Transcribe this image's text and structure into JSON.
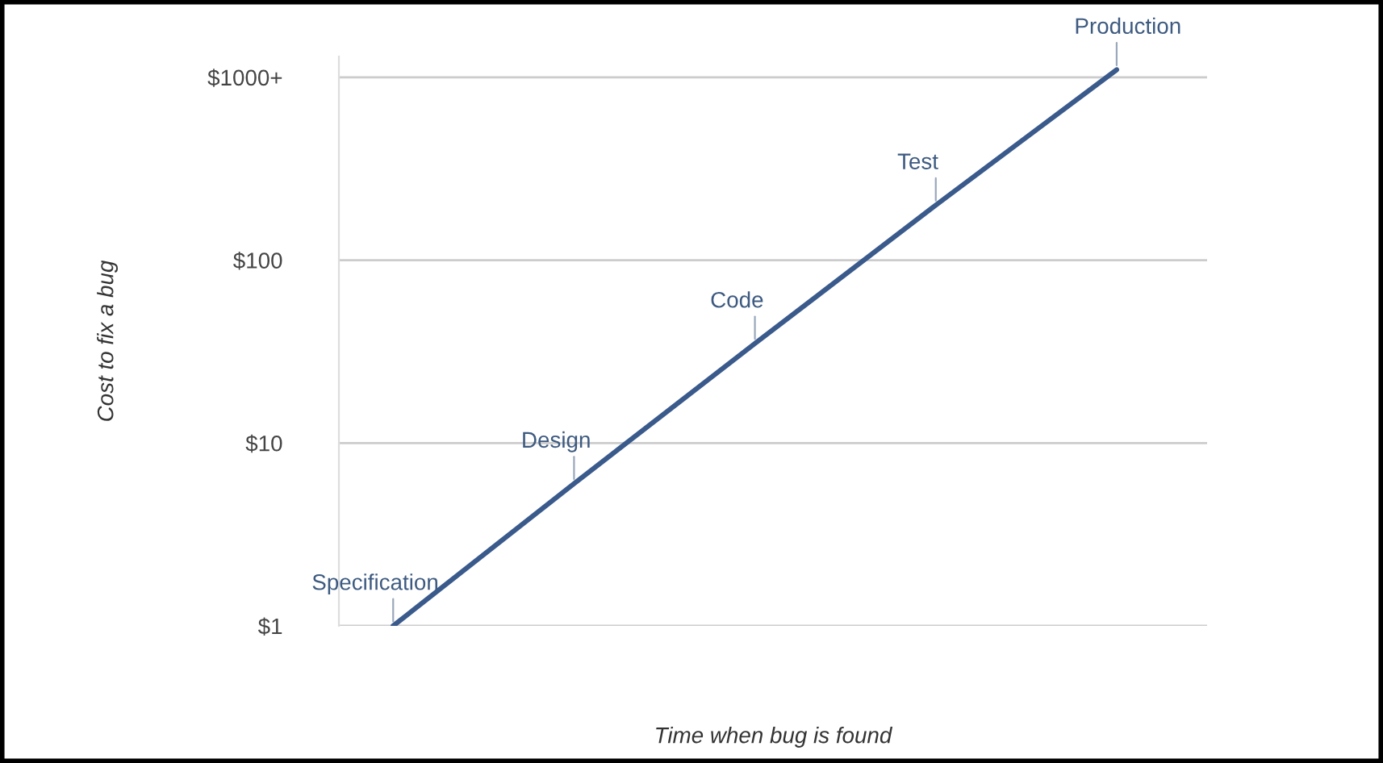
{
  "chart_data": {
    "type": "line",
    "categories": [
      "Specification",
      "Design",
      "Code",
      "Test",
      "Production"
    ],
    "series": [
      {
        "color": "#3a5a8c",
        "values": [
          1,
          6,
          35,
          200,
          1100
        ]
      }
    ],
    "xlabel": "Time when bug is found",
    "ylabel": "Cost to fix a bug",
    "log": "y",
    "ylim": [
      1,
      1300
    ],
    "yticks": [
      {
        "value": 1,
        "label": "$1"
      },
      {
        "value": 10,
        "label": "$10"
      },
      {
        "value": 100,
        "label": "$100"
      },
      {
        "value": 1000,
        "label": "$1000+"
      }
    ],
    "grid": "y",
    "tick_labels": "y",
    "marker": "none",
    "line_style": "solid"
  }
}
